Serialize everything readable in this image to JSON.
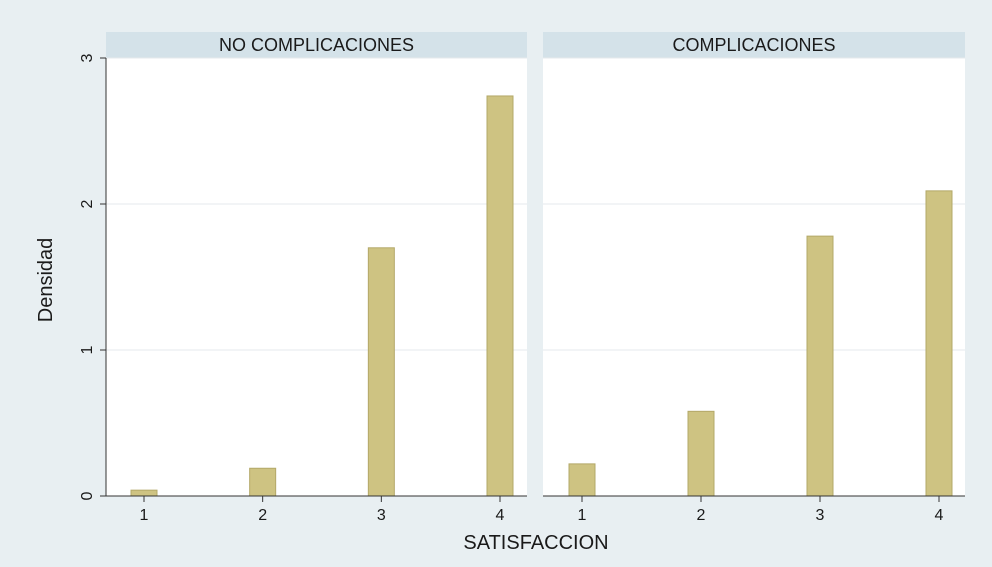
{
  "colors": {
    "outer_background": "#e8eff2",
    "plot_background": "#ffffff",
    "panel_header": "#d4e2e9",
    "bar_fill": "#cec382",
    "bar_stroke": "#b3a868",
    "gridline": "#e6eaec",
    "axis": "#333333"
  },
  "chart_data": {
    "type": "bar",
    "title": "",
    "xlabel": "SATISFACCION",
    "ylabel": "Densidad",
    "ylim": [
      0,
      3
    ],
    "yticks": [
      "0",
      "1",
      "2",
      "3"
    ],
    "xticks": [
      "1",
      "2",
      "3",
      "4"
    ],
    "grid": true,
    "panels": [
      {
        "name": "NO COMPLICACIONES",
        "categories": [
          "1",
          "2",
          "3",
          "4"
        ],
        "values": [
          0.04,
          0.19,
          1.7,
          2.74
        ]
      },
      {
        "name": "COMPLICACIONES",
        "categories": [
          "1",
          "2",
          "3",
          "4"
        ],
        "values": [
          0.22,
          0.58,
          1.78,
          2.09
        ]
      }
    ]
  }
}
